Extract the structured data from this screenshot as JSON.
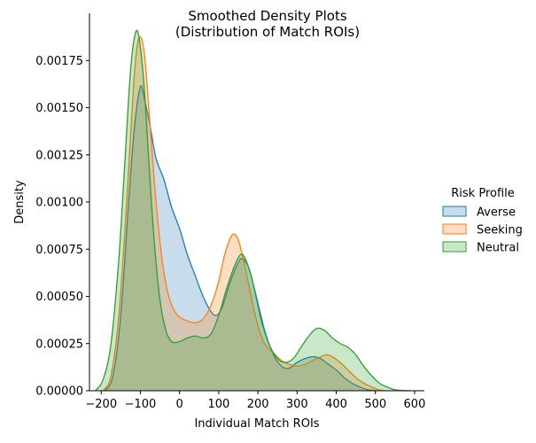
{
  "chart_data": {
    "type": "area",
    "title": "Smoothed Density Plots\n(Distribution of Match ROIs)",
    "xlabel": "Individual Match ROIs",
    "ylabel": "Density",
    "xlim": [
      -230,
      625
    ],
    "ylim": [
      0,
      0.002
    ],
    "x_ticks": [
      -200,
      -100,
      0,
      100,
      200,
      300,
      400,
      500,
      600
    ],
    "y_ticks": [
      0.0,
      0.00025,
      0.0005,
      0.00075,
      0.001,
      0.00125,
      0.0015,
      0.00175
    ],
    "x_tick_labels": [
      "−200",
      "−100",
      "0",
      "100",
      "200",
      "300",
      "400",
      "500",
      "600"
    ],
    "y_tick_labels": [
      "0.00000",
      "0.00025",
      "0.00050",
      "0.00075",
      "0.00100",
      "0.00125",
      "0.00150",
      "0.00175"
    ],
    "legend": {
      "title": "Risk Profile",
      "placement": "right"
    },
    "grid": false,
    "series": [
      {
        "name": "Averse",
        "color": "#1f77b4",
        "points": [
          [
            -190,
            0
          ],
          [
            -170,
            8e-05
          ],
          [
            -150,
            0.0004
          ],
          [
            -130,
            0.001
          ],
          [
            -115,
            0.0014
          ],
          [
            -100,
            0.00161
          ],
          [
            -90,
            0.00155
          ],
          [
            -75,
            0.0014
          ],
          [
            -60,
            0.00123
          ],
          [
            -40,
            0.00112
          ],
          [
            -20,
            0.00097
          ],
          [
            0,
            0.00086
          ],
          [
            20,
            0.00072
          ],
          [
            40,
            0.00061
          ],
          [
            60,
            0.0005
          ],
          [
            80,
            0.00042
          ],
          [
            95,
            0.0004
          ],
          [
            110,
            0.00045
          ],
          [
            130,
            0.00058
          ],
          [
            150,
            0.00068
          ],
          [
            160,
            0.0007
          ],
          [
            175,
            0.00066
          ],
          [
            190,
            0.00055
          ],
          [
            205,
            0.00042
          ],
          [
            220,
            0.0003
          ],
          [
            240,
            0.00019
          ],
          [
            260,
            0.00013
          ],
          [
            280,
            0.00012
          ],
          [
            300,
            0.00015
          ],
          [
            320,
            0.00017
          ],
          [
            340,
            0.00018
          ],
          [
            360,
            0.00017
          ],
          [
            380,
            0.00014
          ],
          [
            400,
            0.00011
          ],
          [
            420,
            7e-05
          ],
          [
            440,
            4e-05
          ],
          [
            460,
            2e-05
          ],
          [
            480,
            5e-06
          ],
          [
            500,
            0
          ]
        ]
      },
      {
        "name": "Seeking",
        "color": "#ff7f0e",
        "points": [
          [
            -195,
            0
          ],
          [
            -175,
            8e-05
          ],
          [
            -155,
            0.0004
          ],
          [
            -135,
            0.001
          ],
          [
            -118,
            0.0016
          ],
          [
            -108,
            0.00183
          ],
          [
            -98,
            0.00187
          ],
          [
            -88,
            0.00175
          ],
          [
            -75,
            0.0014
          ],
          [
            -60,
            0.001
          ],
          [
            -45,
            0.0007
          ],
          [
            -30,
            0.00052
          ],
          [
            -15,
            0.00043
          ],
          [
            0,
            0.00039
          ],
          [
            20,
            0.00037
          ],
          [
            40,
            0.00036
          ],
          [
            60,
            0.00038
          ],
          [
            80,
            0.00045
          ],
          [
            100,
            0.00058
          ],
          [
            115,
            0.00072
          ],
          [
            130,
            0.00081
          ],
          [
            140,
            0.00083
          ],
          [
            150,
            0.0008
          ],
          [
            160,
            0.00072
          ],
          [
            175,
            0.00058
          ],
          [
            190,
            0.00043
          ],
          [
            205,
            0.00031
          ],
          [
            220,
            0.00024
          ],
          [
            240,
            0.0002
          ],
          [
            260,
            0.00016
          ],
          [
            280,
            0.00014
          ],
          [
            300,
            0.00013
          ],
          [
            320,
            0.00014
          ],
          [
            340,
            0.00016
          ],
          [
            360,
            0.00018
          ],
          [
            375,
            0.00019
          ],
          [
            390,
            0.00018
          ],
          [
            410,
            0.00015
          ],
          [
            430,
            0.00011
          ],
          [
            450,
            7e-05
          ],
          [
            470,
            4e-05
          ],
          [
            490,
            2e-05
          ],
          [
            510,
            5e-06
          ],
          [
            525,
            0
          ]
        ]
      },
      {
        "name": "Neutral",
        "color": "#2ca02c",
        "points": [
          [
            -215,
            0
          ],
          [
            -195,
            6e-05
          ],
          [
            -175,
            0.00025
          ],
          [
            -155,
            0.0007
          ],
          [
            -140,
            0.0012
          ],
          [
            -125,
            0.0017
          ],
          [
            -112,
            0.0019
          ],
          [
            -102,
            0.00185
          ],
          [
            -90,
            0.0016
          ],
          [
            -78,
            0.0012
          ],
          [
            -65,
            0.0008
          ],
          [
            -50,
            0.00048
          ],
          [
            -35,
            0.00032
          ],
          [
            -20,
            0.00026
          ],
          [
            0,
            0.00026
          ],
          [
            20,
            0.00028
          ],
          [
            40,
            0.00029
          ],
          [
            60,
            0.00028
          ],
          [
            80,
            0.0003
          ],
          [
            100,
            0.0004
          ],
          [
            120,
            0.00054
          ],
          [
            140,
            0.00066
          ],
          [
            155,
            0.00072
          ],
          [
            165,
            0.00071
          ],
          [
            180,
            0.00063
          ],
          [
            195,
            0.0005
          ],
          [
            210,
            0.00036
          ],
          [
            230,
            0.00024
          ],
          [
            250,
            0.00017
          ],
          [
            270,
            0.00015
          ],
          [
            290,
            0.00017
          ],
          [
            310,
            0.00023
          ],
          [
            330,
            0.00029
          ],
          [
            350,
            0.00033
          ],
          [
            370,
            0.00032
          ],
          [
            390,
            0.00028
          ],
          [
            410,
            0.00025
          ],
          [
            430,
            0.00023
          ],
          [
            450,
            0.00019
          ],
          [
            470,
            0.00013
          ],
          [
            490,
            8e-05
          ],
          [
            510,
            4e-05
          ],
          [
            530,
            2e-05
          ],
          [
            550,
            5e-06
          ],
          [
            570,
            1e-06
          ],
          [
            590,
            0
          ]
        ]
      }
    ]
  }
}
